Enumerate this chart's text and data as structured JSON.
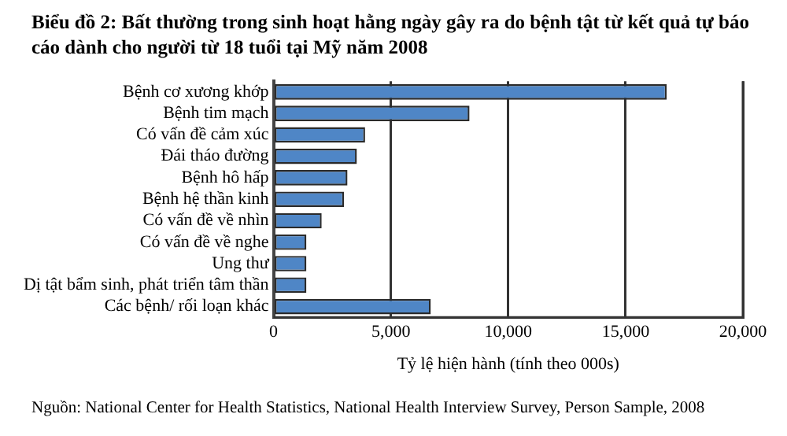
{
  "chart_data": {
    "type": "bar",
    "orientation": "horizontal",
    "title": "Biểu đồ 2: Bất thường trong sinh hoạt hằng ngày gây ra do bệnh tật từ kết quả tự báo cáo  dành cho người từ 18 tuổi tại Mỹ năm 2008",
    "categories": [
      "Bệnh cơ xương khớp",
      "Bệnh tim mạch",
      "Có vấn đề cảm xúc",
      "Đái tháo đường",
      "Bệnh hô hấp",
      "Bệnh hệ thần kinh",
      "Có vấn đề về nhìn",
      "Có vấn đề về nghe",
      "Ung thư",
      "Dị tật bẩm sinh, phát triển tâm thần",
      "Các bệnh/ rối loạn khác"
    ],
    "values": [
      16750,
      8350,
      3900,
      3550,
      3150,
      3000,
      2050,
      1400,
      1400,
      1400,
      6700
    ],
    "color": "#4f86c6",
    "xlabel": "Tỷ lệ hiện hành (tính theo 000s)",
    "xlim": [
      0,
      20000
    ],
    "xticks": [
      {
        "value": 0,
        "label": "0"
      },
      {
        "value": 5000,
        "label": "5,000"
      },
      {
        "value": 10000,
        "label": "10,000"
      },
      {
        "value": 15000,
        "label": "15,000"
      },
      {
        "value": 20000,
        "label": "20,000"
      }
    ],
    "grid": "x",
    "legend": false,
    "annotations": [
      "Nguồn: National Center for Health Statistics, National Health Interview Survey, Person Sample, 2008"
    ]
  }
}
